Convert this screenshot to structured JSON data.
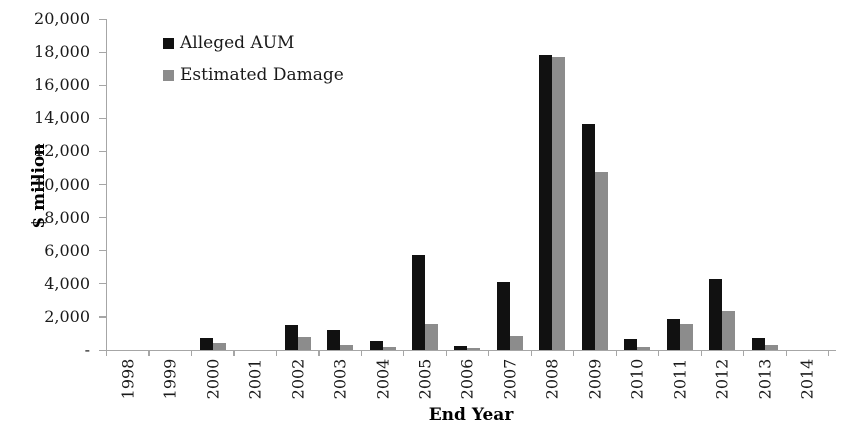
{
  "chart_data": {
    "type": "bar",
    "title": "",
    "xlabel": "End Year",
    "ylabel": "$ million",
    "categories": [
      "1998",
      "1999",
      "2000",
      "2001",
      "2002",
      "2003",
      "2004",
      "2005",
      "2006",
      "2007",
      "2008",
      "2009",
      "2010",
      "2011",
      "2012",
      "2013",
      "2014"
    ],
    "series": [
      {
        "name": "Alleged AUM",
        "color": "#111111",
        "values": [
          0,
          0,
          700,
          0,
          1500,
          1200,
          550,
          5750,
          250,
          4100,
          17800,
          13650,
          650,
          1850,
          4300,
          700,
          0
        ]
      },
      {
        "name": "Estimated Damage",
        "color": "#8c8c8c",
        "values": [
          0,
          0,
          450,
          0,
          800,
          300,
          200,
          1600,
          150,
          850,
          17700,
          10750,
          180,
          1550,
          2350,
          280,
          0
        ]
      }
    ],
    "ylim": [
      0,
      20000
    ],
    "ytick_step": 2000,
    "ytick_labels": [
      "-",
      "2,000",
      "4,000",
      "6,000",
      "8,000",
      "10,000",
      "12,000",
      "14,000",
      "16,000",
      "18,000",
      "20,000"
    ],
    "legend_position": "top-left-inside",
    "grid": false,
    "axis_color": "#a6a6a6",
    "text_color": "#1a1a1a"
  }
}
